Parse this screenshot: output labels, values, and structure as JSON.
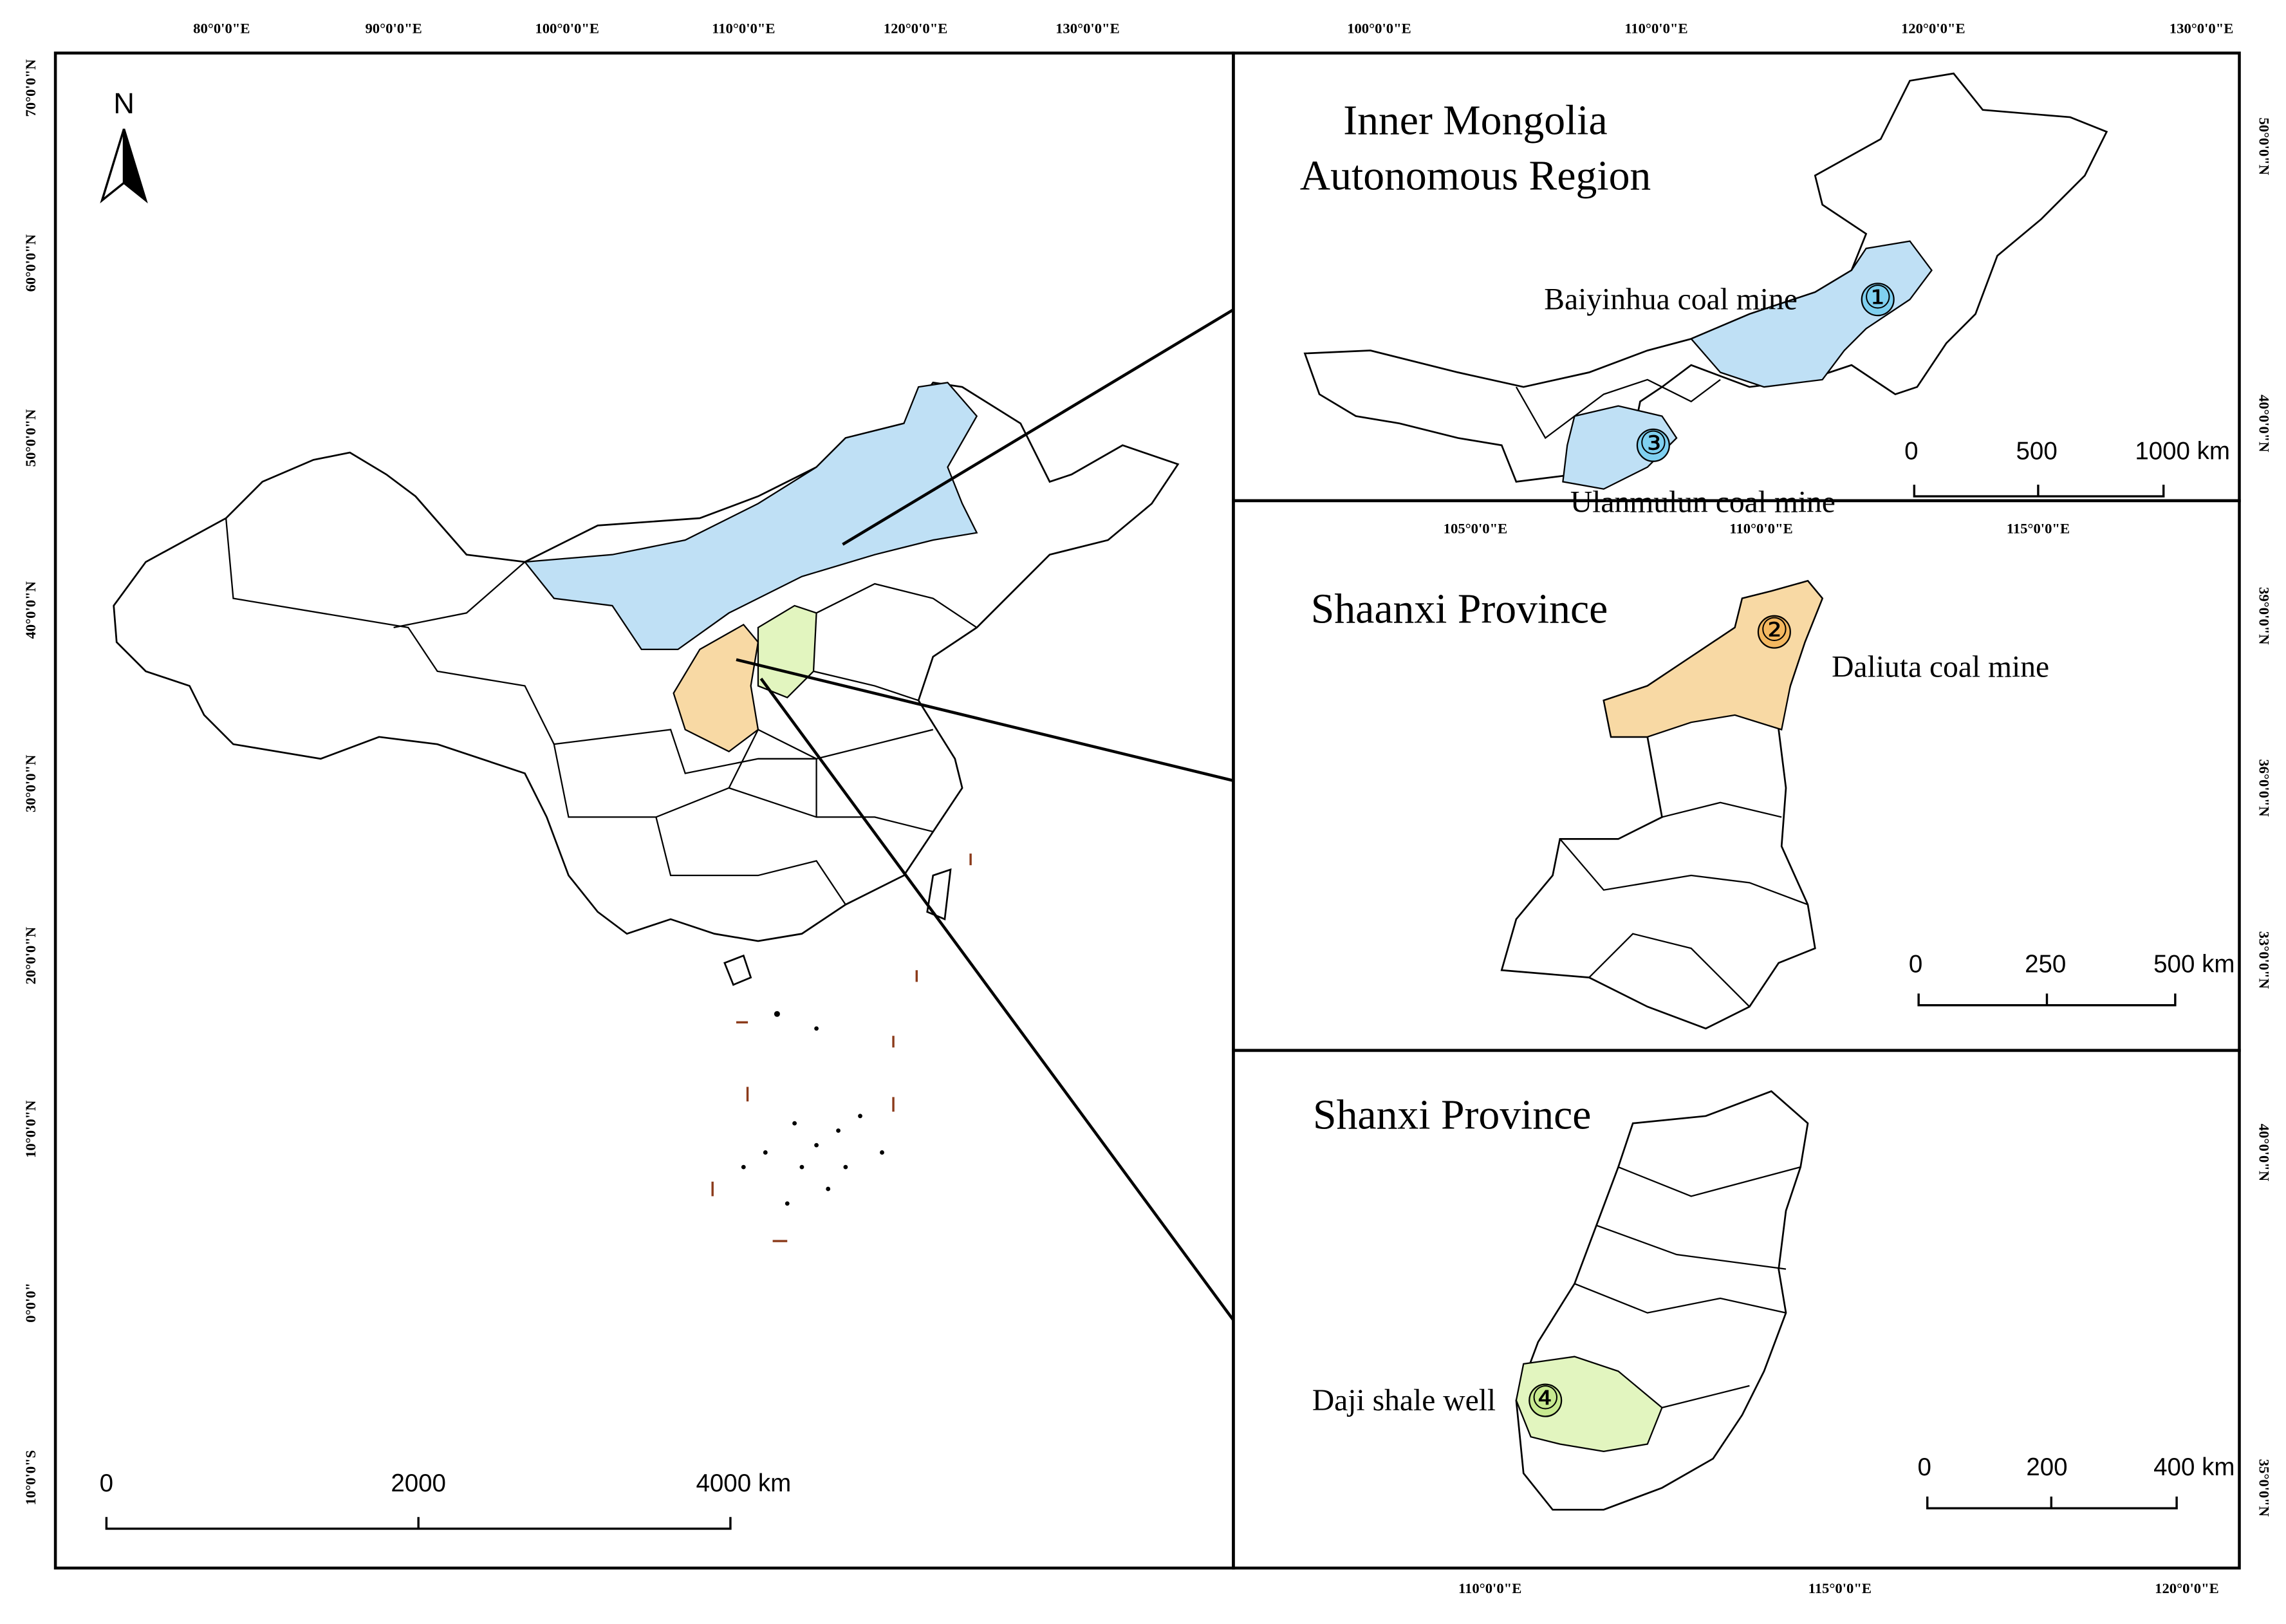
{
  "main_map": {
    "lon_labels": [
      "80°0'0\"E",
      "90°0'0\"E",
      "100°0'0\"E",
      "110°0'0\"E",
      "120°0'0\"E",
      "130°0'0\"E"
    ],
    "lat_labels": [
      "70°0'0\"N",
      "60°0'0\"N",
      "50°0'0\"N",
      "40°0'0\"N",
      "30°0'0\"N",
      "20°0'0\"N",
      "10°0'0\"N",
      "0°0'0\"",
      "10°0'0\"S"
    ],
    "north_arrow": "N",
    "scale_bar": [
      "0",
      "2000",
      "4000 km"
    ]
  },
  "panels": [
    {
      "title_lines": [
        "Inner Mongolia",
        "Autonomous Region"
      ],
      "lon_labels": [
        "100°0'0\"E",
        "110°0'0\"E",
        "120°0'0\"E",
        "130°0'0\"E"
      ],
      "lat_labels": [
        "50°0'0\"N",
        "40°0'0\"N"
      ],
      "sites": [
        {
          "number": "①",
          "label": "Baiyinhua coal mine"
        },
        {
          "number": "③",
          "label": "Ulanmulun coal mine"
        }
      ],
      "scale_bar": [
        "0",
        "500",
        "1000 km"
      ]
    },
    {
      "title_lines": [
        "Shaanxi Province"
      ],
      "lon_labels": [
        "105°0'0\"E",
        "110°0'0\"E",
        "115°0'0\"E"
      ],
      "lat_labels": [
        "39°0'0\"N",
        "36°0'0\"N",
        "33°0'0\"N"
      ],
      "sites": [
        {
          "number": "②",
          "label": "Daliuta coal mine"
        }
      ],
      "scale_bar": [
        "0",
        "250",
        "500 km"
      ]
    },
    {
      "title_lines": [
        "Shanxi Province"
      ],
      "lon_labels": [
        "110°0'0\"E",
        "115°0'0\"E",
        "120°0'0\"E"
      ],
      "lat_labels": [
        "40°0'0\"N",
        "35°0'0\"N"
      ],
      "sites": [
        {
          "number": "④",
          "label": "Daji shale well"
        }
      ],
      "scale_bar": [
        "0",
        "200",
        "400 km"
      ]
    }
  ]
}
